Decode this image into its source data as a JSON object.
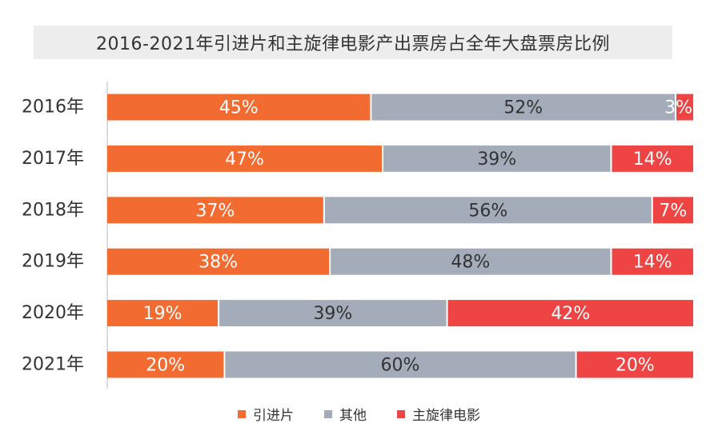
{
  "chart_data": {
    "type": "bar",
    "orientation": "horizontal",
    "stacked": true,
    "title": "2016-2021年引进片和主旋律电影产出票房占全年大盘票房比例",
    "categories": [
      "2016年",
      "2017年",
      "2018年",
      "2019年",
      "2020年",
      "2021年"
    ],
    "series": [
      {
        "name": "引进片",
        "color": "#f26b30",
        "values": [
          45,
          47,
          37,
          38,
          19,
          20
        ],
        "labels": [
          "45%",
          "47%",
          "37%",
          "38%",
          "19%",
          "20%"
        ]
      },
      {
        "name": "其他",
        "color": "#a4acba",
        "values": [
          52,
          39,
          56,
          48,
          39,
          60
        ],
        "labels": [
          "52%",
          "39%",
          "56%",
          "48%",
          "39%",
          "60%"
        ]
      },
      {
        "name": "主旋律电影",
        "color": "#ee4444",
        "values": [
          3,
          14,
          7,
          14,
          42,
          20
        ],
        "labels": [
          "3%",
          "14%",
          "7%",
          "14%",
          "42%",
          "20%"
        ]
      }
    ],
    "xlim": [
      0,
      100
    ],
    "legend_position": "bottom",
    "grid": false
  }
}
